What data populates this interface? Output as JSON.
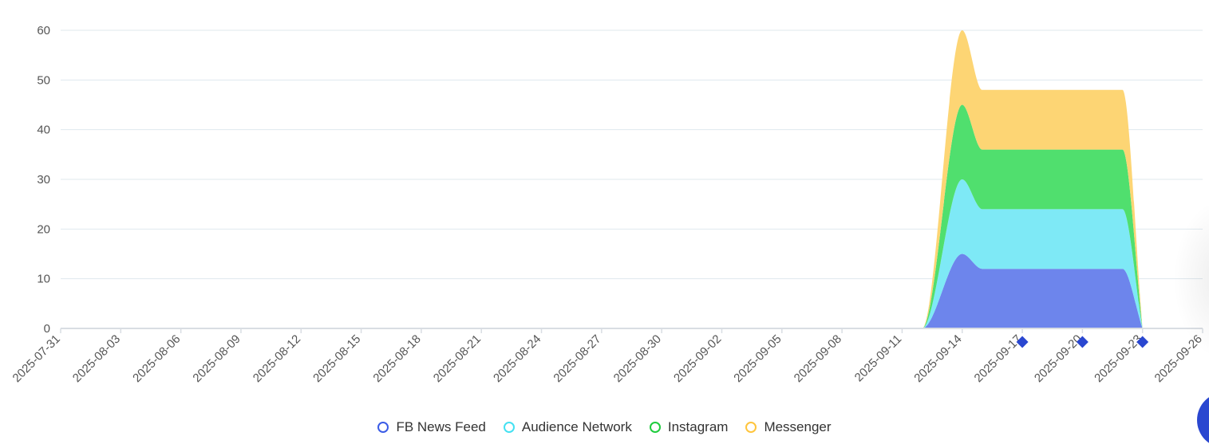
{
  "chart_data": {
    "type": "area",
    "stacked": true,
    "smooth": true,
    "title": "",
    "xlabel": "",
    "ylabel": "",
    "ylim": [
      0,
      60
    ],
    "yticks": [
      0,
      10,
      20,
      30,
      40,
      50,
      60
    ],
    "grid": true,
    "legend_position": "bottom",
    "x_tick_labels": [
      "2025-07-31",
      "2025-08-03",
      "2025-08-06",
      "2025-08-09",
      "2025-08-12",
      "2025-08-15",
      "2025-08-18",
      "2025-08-21",
      "2025-08-24",
      "2025-08-27",
      "2025-08-30",
      "2025-09-02",
      "2025-09-05",
      "2025-09-08",
      "2025-09-11",
      "2025-09-14",
      "2025-09-17",
      "2025-09-20",
      "2025-09-23",
      "2025-09-26"
    ],
    "x": [
      "2025-09-11",
      "2025-09-12",
      "2025-09-14",
      "2025-09-15",
      "2025-09-16",
      "2025-09-17",
      "2025-09-18",
      "2025-09-19",
      "2025-09-20",
      "2025-09-21",
      "2025-09-22",
      "2025-09-23"
    ],
    "series": [
      {
        "name": "FB News Feed",
        "color": "#3b5ce6",
        "fill": "#6d85ec",
        "values": [
          0,
          0,
          15,
          12,
          12,
          12,
          12,
          12,
          12,
          12,
          12,
          0
        ]
      },
      {
        "name": "Audience Network",
        "color": "#44e1f2",
        "fill": "#7ee9f6",
        "values": [
          0,
          0,
          15,
          12,
          12,
          12,
          12,
          12,
          12,
          12,
          12,
          0
        ]
      },
      {
        "name": "Instagram",
        "color": "#1fcc3e",
        "fill": "#50df6e",
        "values": [
          0,
          0,
          15,
          12,
          12,
          12,
          12,
          12,
          12,
          12,
          12,
          0
        ]
      },
      {
        "name": "Messenger",
        "color": "#ffc53d",
        "fill": "#fdd574",
        "values": [
          0,
          0,
          15,
          12,
          12,
          12,
          12,
          12,
          12,
          12,
          12,
          0
        ]
      }
    ],
    "markers": {
      "color": "#2a47d0",
      "shape": "diamond",
      "x": [
        "2025-09-17",
        "2025-09-20",
        "2025-09-23"
      ]
    }
  }
}
